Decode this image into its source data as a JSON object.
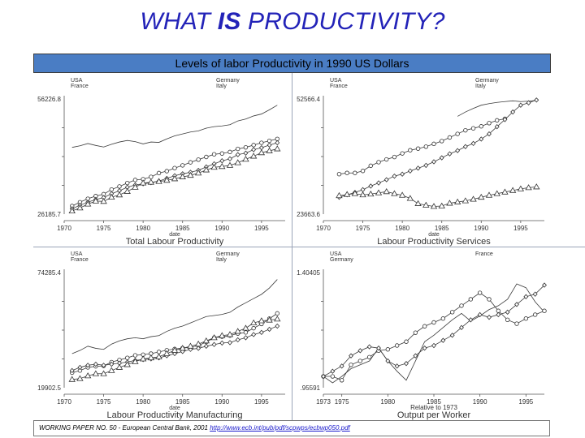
{
  "slide": {
    "title_pre": "WHAT ",
    "title_bold": "IS",
    "title_post": " PRODUCTIVITY?",
    "header": "Levels of labor Productivity in 1990 US Dollars",
    "footer_text": "WORKING PAPER NO. 50 - European Central Bank, 2001",
    "footer_link": "http://www.ecb.int/pub/pdf/scpwps/ecbwp050.pdf"
  },
  "chart_data": [
    {
      "type": "line",
      "title": "Total Labour Productivity",
      "xlabel": "date",
      "ylabel": "",
      "xlim": [
        1970,
        1998
      ],
      "ylim": [
        26185.7,
        56226.8
      ],
      "y_tick_labels": [
        "56226.8",
        "26185.7"
      ],
      "x_ticks": [
        1970,
        1975,
        1980,
        1985,
        1990,
        1995
      ],
      "legend_left": [
        "USA",
        "France"
      ],
      "legend_right": [
        "Germany",
        "Italy"
      ],
      "x": [
        1971,
        1972,
        1973,
        1974,
        1975,
        1976,
        1977,
        1978,
        1979,
        1980,
        1981,
        1982,
        1983,
        1984,
        1985,
        1986,
        1987,
        1988,
        1989,
        1990,
        1991,
        1992,
        1993,
        1994,
        1995,
        1996,
        1997
      ],
      "series": [
        {
          "name": "USA",
          "marker": "none",
          "values": [
            43600,
            44000,
            44600,
            44100,
            43700,
            44400,
            45000,
            45400,
            45100,
            44500,
            45000,
            44900,
            45800,
            46600,
            47100,
            47600,
            47900,
            48600,
            49000,
            49200,
            49500,
            50500,
            51000,
            51800,
            52300,
            53400,
            54600
          ]
        },
        {
          "name": "France",
          "marker": "circle",
          "values": [
            28300,
            29300,
            30200,
            30900,
            31400,
            32600,
            33400,
            34300,
            35100,
            35300,
            35900,
            36900,
            37400,
            38200,
            38900,
            39700,
            40400,
            41100,
            41800,
            42000,
            42400,
            43200,
            43600,
            44200,
            44800,
            45300,
            45800
          ]
        },
        {
          "name": "Germany",
          "marker": "diamond",
          "values": [
            27600,
            28500,
            29300,
            30000,
            30500,
            31500,
            32300,
            33200,
            33800,
            34100,
            34400,
            34800,
            35500,
            36200,
            36700,
            37100,
            37600,
            38500,
            39300,
            40100,
            40600,
            41700,
            42100,
            43000,
            43500,
            44200,
            44800
          ]
        },
        {
          "name": "Italy",
          "marker": "triangle",
          "values": [
            27000,
            27800,
            28800,
            29600,
            29500,
            30600,
            31200,
            32100,
            33200,
            34300,
            34500,
            34700,
            35000,
            35400,
            35900,
            36300,
            36900,
            37700,
            38400,
            38600,
            38900,
            39600,
            40500,
            41300,
            42200,
            42700,
            43200
          ]
        }
      ]
    },
    {
      "type": "line",
      "title": "Labour Productivity Services",
      "xlabel": "date",
      "ylabel": "",
      "xlim": [
        1970,
        1998
      ],
      "ylim": [
        23663.6,
        52566.4
      ],
      "y_tick_labels": [
        "52566.4",
        "23663.6"
      ],
      "x_ticks": [
        1970,
        1975,
        1980,
        1985,
        1990,
        1995
      ],
      "legend_left": [
        "USA",
        "France"
      ],
      "legend_right": [
        "Germany",
        "Italy"
      ],
      "x": [
        1972,
        1973,
        1974,
        1975,
        1976,
        1977,
        1978,
        1979,
        1980,
        1981,
        1982,
        1983,
        1984,
        1985,
        1986,
        1987,
        1988,
        1989,
        1990,
        1991,
        1992,
        1993,
        1994,
        1995,
        1996,
        1997
      ],
      "series": [
        {
          "name": "USA",
          "marker": "none",
          "values": [
            null,
            null,
            null,
            null,
            null,
            null,
            null,
            null,
            null,
            null,
            null,
            null,
            null,
            null,
            null,
            48200,
            49300,
            50200,
            51000,
            51400,
            51700,
            51900,
            52100,
            51900,
            52000,
            52200
          ]
        },
        {
          "name": "France",
          "marker": "circle",
          "values": [
            33700,
            34000,
            34000,
            34500,
            35800,
            36700,
            37400,
            38000,
            38900,
            39700,
            40100,
            40600,
            41300,
            42000,
            42900,
            43800,
            44700,
            45200,
            45700,
            46500,
            47200,
            47600,
            null,
            null,
            null,
            null
          ]
        },
        {
          "name": "Germany",
          "marker": "diamond",
          "values": [
            27900,
            28500,
            29100,
            29800,
            30700,
            31500,
            32300,
            33200,
            33700,
            34500,
            35200,
            35900,
            36800,
            37800,
            38800,
            39600,
            40600,
            41400,
            42500,
            43800,
            45600,
            47400,
            49300,
            51000,
            51600,
            52300
          ]
        },
        {
          "name": "Italy",
          "marker": "triangle",
          "values": [
            28300,
            28600,
            28800,
            28500,
            28700,
            29000,
            29300,
            28800,
            28400,
            27600,
            26300,
            25900,
            25600,
            25700,
            26400,
            26700,
            27000,
            27400,
            27900,
            28400,
            28800,
            29200,
            29600,
            30000,
            30300,
            30500
          ]
        }
      ]
    },
    {
      "type": "line",
      "title": "Labour Productivity Manufacturing",
      "xlabel": "date",
      "ylabel": "",
      "xlim": [
        1970,
        1998
      ],
      "ylim": [
        19902.5,
        74285.4
      ],
      "y_tick_labels": [
        "74285.4",
        "19902.5"
      ],
      "x_ticks": [
        1970,
        1975,
        1980,
        1985,
        1990,
        1995
      ],
      "legend_left": [
        "USA",
        "France"
      ],
      "legend_right": [
        "Germany",
        "Italy"
      ],
      "x": [
        1971,
        1972,
        1973,
        1974,
        1975,
        1976,
        1977,
        1978,
        1979,
        1980,
        1981,
        1982,
        1983,
        1984,
        1985,
        1986,
        1987,
        1988,
        1989,
        1990,
        1991,
        1992,
        1993,
        1994,
        1995,
        1996,
        1997
      ],
      "series": [
        {
          "name": "USA",
          "marker": "none",
          "values": [
            36000,
            37500,
            39500,
            38500,
            38000,
            40500,
            42000,
            43000,
            43500,
            43000,
            44000,
            44500,
            46500,
            48000,
            49000,
            50500,
            52000,
            53500,
            54000,
            54500,
            55500,
            58000,
            60000,
            62000,
            64000,
            67000,
            71000
          ]
        },
        {
          "name": "France",
          "marker": "circle",
          "values": [
            27000,
            28000,
            29500,
            30000,
            30200,
            32000,
            33000,
            34000,
            35200,
            35500,
            36000,
            36800,
            37600,
            38200,
            38600,
            39000,
            39800,
            41500,
            43500,
            44000,
            44500,
            45500,
            46000,
            48000,
            50000,
            52500,
            55000
          ]
        },
        {
          "name": "Germany",
          "marker": "diamond",
          "values": [
            28000,
            29500,
            30500,
            31000,
            30500,
            31000,
            31500,
            32000,
            32800,
            33200,
            33500,
            34000,
            35000,
            36000,
            37000,
            38000,
            38500,
            39500,
            40300,
            41000,
            41200,
            42500,
            43500,
            45000,
            46000,
            47500,
            49000
          ]
        },
        {
          "name": "Italy",
          "marker": "triangle",
          "values": [
            23800,
            24200,
            25500,
            26500,
            26500,
            28000,
            29500,
            30800,
            32200,
            33500,
            34000,
            34500,
            36000,
            37500,
            38500,
            39500,
            40500,
            42000,
            43500,
            44500,
            45000,
            46500,
            48000,
            50500,
            51500,
            51800,
            52300
          ]
        }
      ]
    },
    {
      "type": "line",
      "title": "Output per Worker",
      "xlabel": "Relative to 1973",
      "ylabel": "",
      "xlim": [
        1973,
        1997
      ],
      "ylim": [
        0.95591,
        1.40405
      ],
      "y_tick_labels": [
        "1.40405",
        ".95591"
      ],
      "x_ticks_labels": [
        "1973",
        "1975",
        "1980",
        "1985",
        "1990",
        "1995"
      ],
      "legend_left": [
        "USA",
        "Germany"
      ],
      "legend_right": [
        "France"
      ],
      "x": [
        1973,
        1974,
        1975,
        1976,
        1977,
        1978,
        1979,
        1980,
        1981,
        1982,
        1983,
        1984,
        1985,
        1986,
        1987,
        1988,
        1989,
        1990,
        1991,
        1992,
        1993,
        1994,
        1995,
        1996,
        1997
      ],
      "series": [
        {
          "name": "USA",
          "marker": "none",
          "values": [
            1.0,
            0.975,
            1.0,
            1.03,
            1.045,
            1.06,
            1.11,
            1.06,
            1.02,
            0.985,
            1.06,
            1.135,
            1.16,
            1.19,
            1.22,
            1.245,
            1.215,
            1.235,
            1.26,
            1.275,
            1.3,
            1.36,
            1.345,
            1.29,
            1.25
          ]
        },
        {
          "name": "Germany",
          "marker": "circle",
          "values": [
            1.0,
            1.0,
            0.985,
            1.045,
            1.06,
            1.075,
            1.1,
            1.105,
            1.12,
            1.135,
            1.17,
            1.195,
            1.21,
            1.225,
            1.25,
            1.275,
            1.3,
            1.325,
            1.3,
            1.255,
            1.22,
            1.205,
            1.225,
            1.24,
            1.255
          ]
        },
        {
          "name": "France",
          "marker": "diamond",
          "values": [
            1.0,
            1.02,
            1.04,
            1.08,
            1.1,
            1.115,
            1.11,
            1.06,
            1.04,
            1.05,
            1.08,
            1.11,
            1.12,
            1.14,
            1.16,
            1.19,
            1.22,
            1.24,
            1.23,
            1.24,
            1.25,
            1.28,
            1.31,
            1.32,
            1.355
          ]
        }
      ]
    }
  ]
}
